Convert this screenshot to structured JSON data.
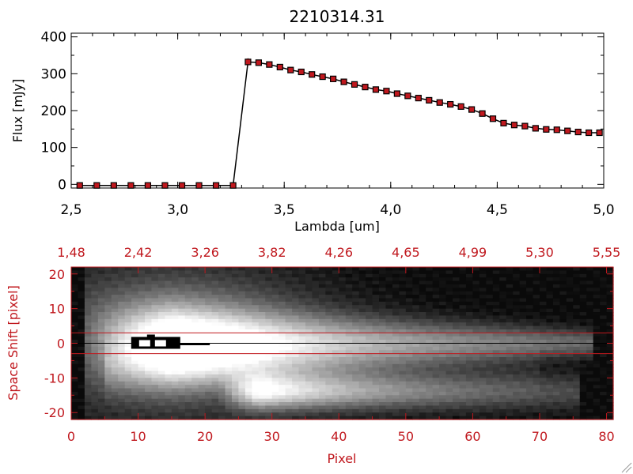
{
  "chart_data": [
    {
      "type": "line",
      "title": "2210314.31",
      "xlabel": "Lambda [um]",
      "ylabel": "Flux [mJy]",
      "xlim": [
        2.5,
        5.0
      ],
      "ylim": [
        -10,
        410
      ],
      "xticks": [
        "2,5",
        "3,0",
        "3,5",
        "4,0",
        "4,5",
        "5,0"
      ],
      "yticks": [
        "0",
        "100",
        "200",
        "300",
        "400"
      ],
      "grid": false,
      "series": [
        {
          "color": "#000000",
          "marker_color": "#c0181e",
          "x": [
            2.54,
            2.62,
            2.7,
            2.78,
            2.86,
            2.94,
            3.02,
            3.1,
            3.18,
            3.26,
            3.33,
            3.38,
            3.43,
            3.48,
            3.53,
            3.58,
            3.63,
            3.68,
            3.73,
            3.78,
            3.83,
            3.88,
            3.93,
            3.98,
            4.03,
            4.08,
            4.13,
            4.18,
            4.23,
            4.28,
            4.33,
            4.38,
            4.43,
            4.48,
            4.53,
            4.58,
            4.63,
            4.68,
            4.73,
            4.78,
            4.83,
            4.88,
            4.93,
            4.98
          ],
          "y": [
            -3,
            -3,
            -3,
            -3,
            -3,
            -3,
            -3,
            -3,
            -3,
            -3,
            332,
            330,
            325,
            318,
            310,
            305,
            298,
            292,
            286,
            278,
            271,
            264,
            257,
            253,
            246,
            240,
            234,
            228,
            222,
            217,
            211,
            203,
            192,
            178,
            166,
            161,
            158,
            152,
            149,
            148,
            145,
            142,
            140,
            140
          ],
          "error": [
            0,
            0,
            0,
            0,
            0,
            0,
            0,
            0,
            0,
            0,
            10,
            8,
            6,
            6,
            5,
            5,
            5,
            5,
            5,
            5,
            5,
            5,
            5,
            5,
            5,
            5,
            5,
            5,
            5,
            5,
            5,
            5,
            5,
            5,
            5,
            5,
            5,
            5,
            5,
            5,
            5,
            5,
            5,
            5
          ]
        }
      ]
    },
    {
      "type": "heatmap",
      "xlabel": "Pixel",
      "ylabel": "Space Shift [pixel]",
      "xlim": [
        0,
        81
      ],
      "ylim": [
        -22,
        22
      ],
      "xticks": [
        "0",
        "10",
        "20",
        "30",
        "40",
        "50",
        "60",
        "70",
        "80"
      ],
      "yticks": [
        "20",
        "10",
        "0",
        "-10",
        "-20"
      ],
      "top_xticks": [
        "1,48",
        "2,42",
        "3,26",
        "3,82",
        "4,26",
        "4,65",
        "4,99",
        "5,30",
        "5,55"
      ],
      "colormap": "grayscale",
      "traces": [
        {
          "name": "main",
          "x_start": 2,
          "x_end": 78,
          "y_center": 0,
          "peak_x": 15,
          "peak_intensity": 1.0,
          "decay_x": 0.018,
          "width_at_peak": 7,
          "width_at_end": 2.5
        },
        {
          "name": "secondary",
          "x_start": 22,
          "x_end": 76,
          "y_center": -14,
          "peak_x": 28,
          "peak_intensity": 0.85,
          "decay_x": 0.03,
          "width": 3.5
        }
      ],
      "extraction_lines_y": [
        3,
        -3
      ],
      "center_line_y": 0,
      "line_color": "#c0181e",
      "marker": {
        "x_start": 9.2,
        "x_end": 20,
        "y": 0
      }
    }
  ]
}
